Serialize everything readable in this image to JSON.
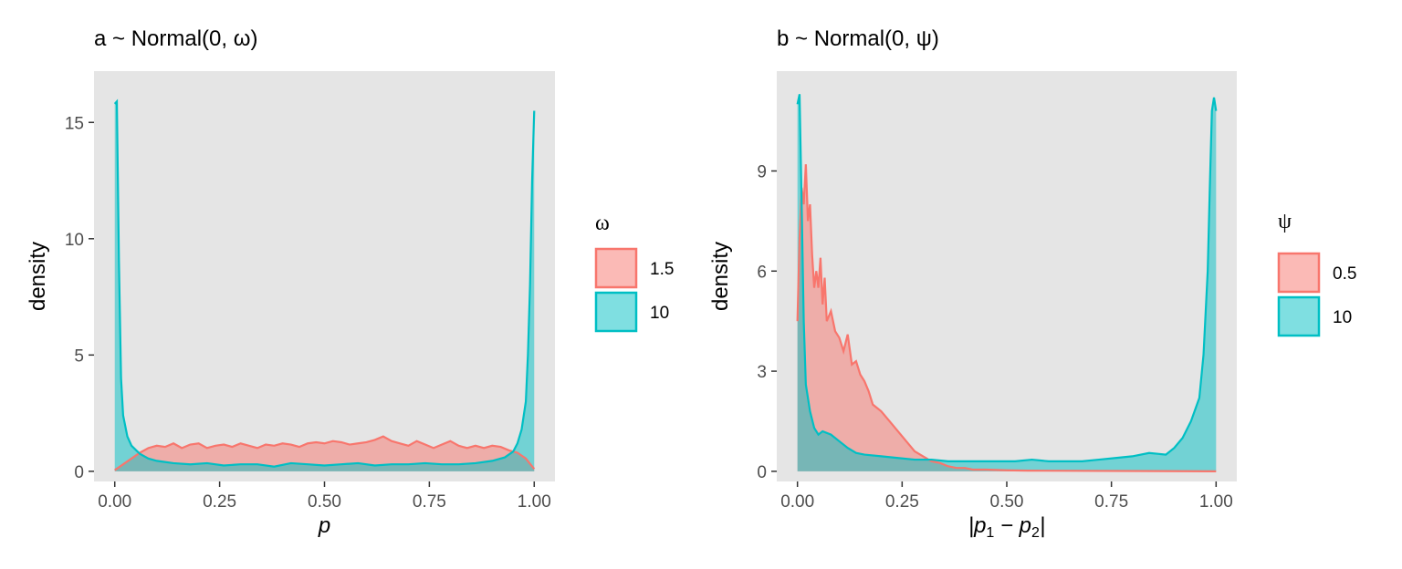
{
  "chart_data": [
    {
      "type": "area",
      "title": "a ~ Normal(0, ω)",
      "xlabel": "p",
      "ylabel": "density",
      "xlim": [
        0,
        1
      ],
      "ylim": [
        0,
        16.5
      ],
      "xticks": [
        0,
        0.25,
        0.5,
        0.75,
        1
      ],
      "xtick_labels": [
        "0.00",
        "0.25",
        "0.50",
        "0.75",
        "1.00"
      ],
      "yticks": [
        0,
        5,
        10,
        15
      ],
      "ytick_labels": [
        "0",
        "5",
        "10",
        "15"
      ],
      "grid": false,
      "legend": {
        "title": "ω",
        "position": "right"
      },
      "series": [
        {
          "name": "1.5",
          "color": "#f8766d",
          "fill": "#f8766d",
          "x": [
            0,
            0.02,
            0.04,
            0.06,
            0.08,
            0.1,
            0.12,
            0.14,
            0.16,
            0.18,
            0.2,
            0.22,
            0.24,
            0.26,
            0.28,
            0.3,
            0.32,
            0.34,
            0.36,
            0.38,
            0.4,
            0.42,
            0.44,
            0.46,
            0.48,
            0.5,
            0.52,
            0.54,
            0.56,
            0.58,
            0.6,
            0.62,
            0.64,
            0.66,
            0.68,
            0.7,
            0.72,
            0.74,
            0.76,
            0.78,
            0.8,
            0.82,
            0.84,
            0.86,
            0.88,
            0.9,
            0.92,
            0.94,
            0.96,
            0.98,
            1
          ],
          "y": [
            0.05,
            0.3,
            0.55,
            0.8,
            1.0,
            1.1,
            1.05,
            1.2,
            1.0,
            1.15,
            1.2,
            1.0,
            1.1,
            1.15,
            1.05,
            1.2,
            1.1,
            1.0,
            1.15,
            1.1,
            1.2,
            1.15,
            1.05,
            1.2,
            1.25,
            1.2,
            1.3,
            1.25,
            1.15,
            1.2,
            1.25,
            1.35,
            1.5,
            1.3,
            1.2,
            1.1,
            1.3,
            1.15,
            1.0,
            1.15,
            1.3,
            1.1,
            1.0,
            1.1,
            1.0,
            1.1,
            1.05,
            0.9,
            0.8,
            0.55,
            0.1
          ]
        },
        {
          "name": "10",
          "color": "#00bfc4",
          "fill": "#00bfc4",
          "x": [
            0,
            0.005,
            0.01,
            0.015,
            0.02,
            0.03,
            0.04,
            0.06,
            0.08,
            0.1,
            0.14,
            0.18,
            0.22,
            0.26,
            0.3,
            0.34,
            0.38,
            0.42,
            0.46,
            0.5,
            0.54,
            0.58,
            0.62,
            0.66,
            0.7,
            0.74,
            0.78,
            0.82,
            0.86,
            0.9,
            0.93,
            0.95,
            0.96,
            0.97,
            0.98,
            0.985,
            0.99,
            0.995,
            1
          ],
          "y": [
            15.8,
            15.9,
            9.0,
            4.0,
            2.4,
            1.5,
            1.1,
            0.75,
            0.55,
            0.45,
            0.35,
            0.3,
            0.35,
            0.25,
            0.3,
            0.3,
            0.2,
            0.35,
            0.3,
            0.25,
            0.3,
            0.35,
            0.25,
            0.3,
            0.3,
            0.35,
            0.3,
            0.3,
            0.35,
            0.45,
            0.6,
            0.85,
            1.2,
            1.8,
            3.0,
            5.0,
            8.0,
            12.5,
            15.5
          ]
        }
      ]
    },
    {
      "type": "area",
      "title": "b ~ Normal(0, ψ)",
      "xlabel": "|p1 − p2|",
      "ylabel": "density",
      "xlim": [
        0,
        1
      ],
      "ylim": [
        0,
        11.5
      ],
      "xticks": [
        0,
        0.25,
        0.5,
        0.75,
        1
      ],
      "xtick_labels": [
        "0.00",
        "0.25",
        "0.50",
        "0.75",
        "1.00"
      ],
      "yticks": [
        0,
        3,
        6,
        9
      ],
      "ytick_labels": [
        "0",
        "3",
        "6",
        "9"
      ],
      "grid": false,
      "legend": {
        "title": "ψ",
        "position": "right"
      },
      "series": [
        {
          "name": "0.5",
          "color": "#f8766d",
          "fill": "#f8766d",
          "x": [
            0,
            0.005,
            0.01,
            0.015,
            0.02,
            0.025,
            0.03,
            0.035,
            0.04,
            0.045,
            0.05,
            0.055,
            0.06,
            0.065,
            0.07,
            0.08,
            0.09,
            0.1,
            0.11,
            0.12,
            0.13,
            0.14,
            0.15,
            0.16,
            0.17,
            0.18,
            0.2,
            0.22,
            0.24,
            0.26,
            0.28,
            0.3,
            0.32,
            0.34,
            0.36,
            0.38,
            0.4,
            0.42,
            0.45,
            0.5,
            0.55,
            1
          ],
          "y": [
            4.5,
            7.0,
            8.5,
            8.0,
            9.2,
            7.5,
            8.0,
            6.5,
            5.5,
            6.0,
            5.5,
            6.4,
            5.0,
            5.8,
            4.5,
            4.8,
            4.2,
            4.0,
            3.6,
            4.1,
            3.2,
            3.3,
            2.9,
            2.7,
            2.4,
            2.0,
            1.8,
            1.5,
            1.2,
            0.9,
            0.6,
            0.45,
            0.3,
            0.25,
            0.15,
            0.1,
            0.1,
            0.05,
            0.05,
            0.03,
            0.02,
            0.0
          ]
        },
        {
          "name": "10",
          "color": "#00bfc4",
          "fill": "#00bfc4",
          "x": [
            0,
            0.005,
            0.01,
            0.015,
            0.02,
            0.03,
            0.04,
            0.05,
            0.06,
            0.08,
            0.1,
            0.12,
            0.14,
            0.16,
            0.2,
            0.24,
            0.28,
            0.32,
            0.36,
            0.4,
            0.44,
            0.48,
            0.52,
            0.56,
            0.6,
            0.64,
            0.68,
            0.72,
            0.76,
            0.8,
            0.84,
            0.88,
            0.9,
            0.92,
            0.94,
            0.96,
            0.97,
            0.98,
            0.985,
            0.99,
            0.995,
            1
          ],
          "y": [
            11.0,
            11.3,
            8.0,
            4.5,
            2.6,
            1.8,
            1.3,
            1.1,
            1.2,
            1.1,
            0.9,
            0.7,
            0.55,
            0.5,
            0.45,
            0.4,
            0.35,
            0.35,
            0.3,
            0.3,
            0.3,
            0.3,
            0.3,
            0.35,
            0.3,
            0.3,
            0.3,
            0.35,
            0.4,
            0.45,
            0.55,
            0.5,
            0.7,
            1.0,
            1.5,
            2.2,
            3.5,
            6.0,
            8.5,
            10.8,
            11.2,
            10.8
          ]
        }
      ]
    }
  ]
}
